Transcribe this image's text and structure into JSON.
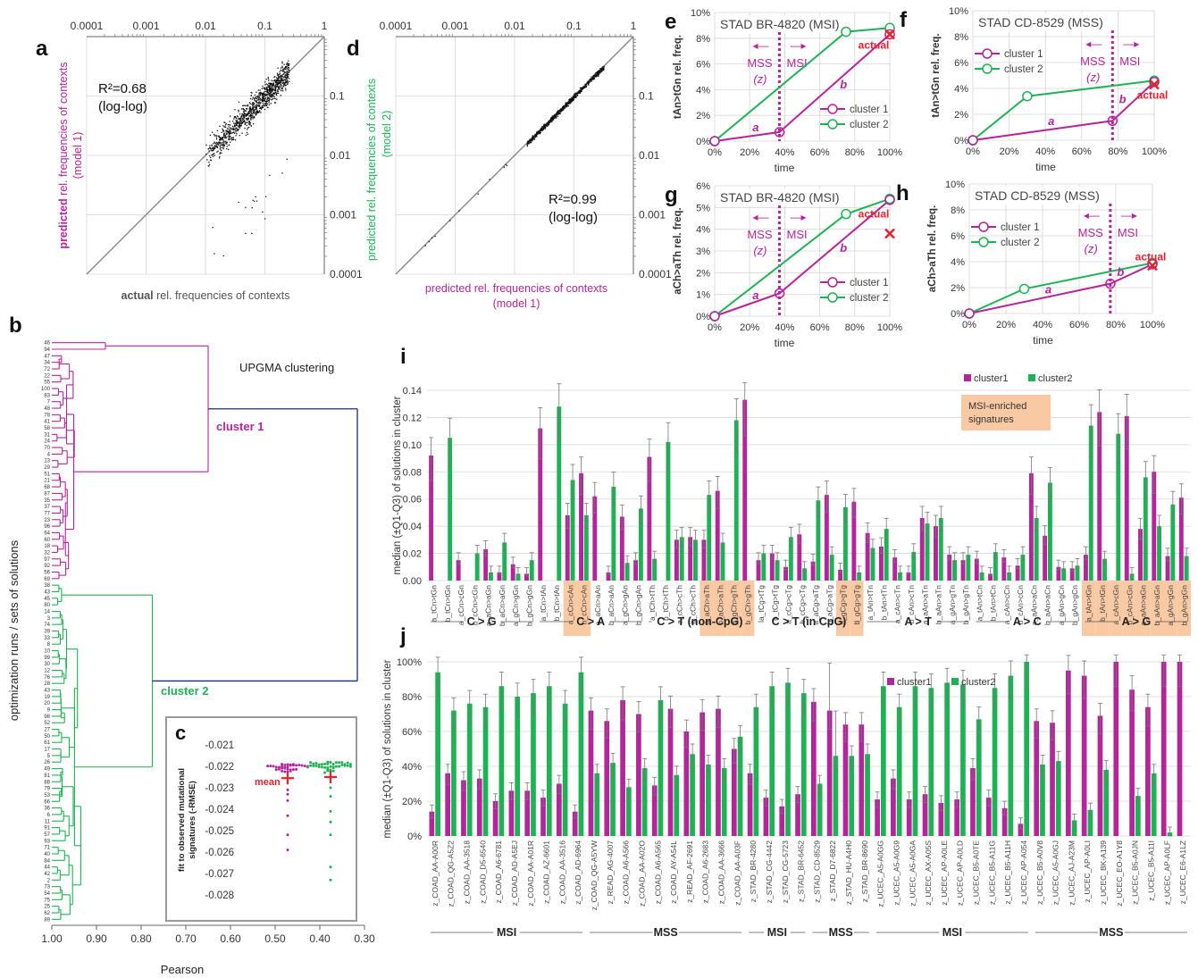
{
  "colors": {
    "magenta": "#b4249b",
    "green": "#1db253",
    "red": "#e8202c",
    "navy": "#1a2c7c",
    "salmon": "#f9c9a4",
    "grid": "#d6d6d6",
    "axis": "#666666",
    "text": "#333333"
  },
  "panels": {
    "a": {
      "letter": "a",
      "xticks": [
        "0.0001",
        "0.001",
        "0.01",
        "0.1",
        "1"
      ],
      "yticks": [
        "1",
        "0.1",
        "0.01",
        "0.001",
        "0.0001"
      ],
      "r2": "R²=0.68",
      "r2_sub": "(log-log)",
      "xlabel_bold": "actual",
      "xlabel_rest": " rel. frequencies of contexts",
      "ylabel_bold": "predicted",
      "ylabel_rest": " rel. frequencies of contexts",
      "ylabel_model": "(model 1)"
    },
    "d": {
      "letter": "d",
      "xticks": [
        "0.0001",
        "0.001",
        "0.01",
        "0.1",
        "1"
      ],
      "yticks": [
        "1",
        "0.1",
        "0.01",
        "0.001",
        "0.0001"
      ],
      "r2": "R²=0.99",
      "r2_sub": "(log-log)",
      "xlabel": "predicted rel. frequencies of contexts",
      "xlabel_model": "(model 1)",
      "ylabel": "predicted rel. frequencies of contexts",
      "ylabel_model": "(model 2)"
    },
    "b": {
      "letter": "b",
      "title": "UPGMA clustering",
      "cluster1": "cluster 1",
      "cluster2": "cluster 2",
      "xticks": [
        "1.00",
        "0.90",
        "0.80",
        "0.70",
        "0.60",
        "0.50",
        "0.40",
        "0.30"
      ],
      "xlabel": "Pearson",
      "ylabel": "optimization runs / sets of solutions",
      "leaf_labels": [
        "46",
        "94",
        "47",
        "34",
        "72",
        "22",
        "55",
        "100",
        "83",
        "7",
        "48",
        "78",
        "41",
        "58",
        "31",
        "24",
        "70",
        "4",
        "13",
        "29",
        "51",
        "21",
        "68",
        "87",
        "35",
        "37",
        "77",
        "23",
        "96",
        "64",
        "60",
        "18",
        "32",
        "97",
        "92",
        "56",
        "69",
        "38",
        "43",
        "45",
        "80",
        "14",
        "3",
        "74",
        "39",
        "33",
        "8",
        "10",
        "99",
        "30",
        "12",
        "76",
        "28",
        "43",
        "19",
        "20",
        "9",
        "98",
        "52",
        "27",
        "50",
        "61",
        "17",
        "5",
        "26",
        "49",
        "81",
        "88",
        "79",
        "53",
        "66",
        "36",
        "6",
        "11",
        "91",
        "57",
        "93",
        "71",
        "40",
        "84",
        "44",
        "42",
        "2",
        "73",
        "54",
        "75",
        "25",
        "62",
        "89"
      ]
    },
    "c": {
      "letter": "c",
      "ylabel1": "fit to observed mutational",
      "ylabel2": "signatures (-RMSE)",
      "yticks": [
        "-0.021",
        "-0.022",
        "-0.023",
        "-0.024",
        "-0.025",
        "-0.026",
        "-0.027",
        "-0.028"
      ],
      "mean": "mean"
    },
    "efgh": [
      {
        "letter": "e",
        "title": "STAD BR-4820 (MSI)",
        "ylabel": "tAn>tGn rel. freq.",
        "yticks": [
          "0%",
          "2%",
          "4%",
          "6%",
          "8%",
          "10%"
        ],
        "ymax": 10,
        "c1": [
          [
            0,
            0
          ],
          [
            37,
            0.7
          ],
          [
            100,
            8.3
          ]
        ],
        "c2": [
          [
            0,
            0
          ],
          [
            75,
            8.5
          ],
          [
            100,
            8.8
          ]
        ],
        "actual": [
          100,
          8.3
        ],
        "z": 37,
        "zlabel": "(z)"
      },
      {
        "letter": "f",
        "title": "STAD CD-8529 (MSS)",
        "ylabel": "tAn>tGn rel. freq.",
        "yticks": [
          "0%",
          "2%",
          "4%",
          "6%",
          "8%",
          "10%"
        ],
        "ymax": 10,
        "c1": [
          [
            0,
            0
          ],
          [
            77,
            1.5
          ],
          [
            100,
            4.5
          ]
        ],
        "c2": [
          [
            0,
            0
          ],
          [
            30,
            3.4
          ],
          [
            100,
            4.6
          ]
        ],
        "actual": [
          100,
          4.3
        ],
        "z": 77,
        "zlabel": "(z)"
      },
      {
        "letter": "g",
        "title": "STAD BR-4820 (MSI)",
        "ylabel": "aCh>aTh rel. freq.",
        "yticks": [
          "0%",
          "1%",
          "2%",
          "3%",
          "4%",
          "5%",
          "6%"
        ],
        "ymax": 6,
        "c1": [
          [
            0,
            0
          ],
          [
            37,
            1.05
          ],
          [
            100,
            5.35
          ]
        ],
        "c2": [
          [
            0,
            0
          ],
          [
            75,
            4.7
          ],
          [
            100,
            5.4
          ]
        ],
        "actual": [
          100,
          3.8
        ],
        "z": 37,
        "zlabel": "(z)"
      },
      {
        "letter": "h",
        "title": "STAD CD-8529 (MSS)",
        "ylabel": "aCh>aTh rel. freq.",
        "yticks": [
          "0%",
          "2%",
          "4%",
          "6%",
          "8%",
          "10%"
        ],
        "ymax": 10,
        "c1": [
          [
            0,
            0
          ],
          [
            77,
            2.3
          ],
          [
            100,
            3.8
          ]
        ],
        "c2": [
          [
            0,
            0
          ],
          [
            30,
            1.9
          ],
          [
            100,
            3.9
          ]
        ],
        "actual": [
          100,
          3.7
        ],
        "z": 77,
        "zlabel": "(z)"
      }
    ],
    "efgh_common": {
      "xticks": [
        "0%",
        "20%",
        "40%",
        "60%",
        "80%",
        "100%"
      ],
      "xlabel": "time",
      "mss": "MSS",
      "msi": "MSI",
      "actual": "actual",
      "seg_a": "a",
      "seg_b": "b",
      "legend1": "cluster 1",
      "legend2": "cluster 2"
    }
  },
  "chart_data": [
    {
      "type": "bar",
      "id": "i",
      "ylabel": "median (±Q1-Q3) of solutions in cluster",
      "yticks": [
        "0.00",
        "0.02",
        "0.04",
        "0.06",
        "0.08",
        "0.10",
        "0.12",
        "0.14"
      ],
      "ylim": [
        0,
        0.14
      ],
      "legend": [
        "cluster1",
        "cluster2"
      ],
      "note": "MSI-enriched signatures",
      "categories": [
        "a_tCn>tGn",
        "b_tCn>tGn",
        "a_cCn>cGn",
        "b_cCn>cGn",
        "a_aCn>aGn",
        "b_aCn>aGn",
        "a_gCn>gGn",
        "b_gCn>gGn",
        "a_tCn>tAn",
        "b_tCn>tAn",
        "a_cCn>cAn",
        "b_cCn>cAn",
        "a_aCn>aAn",
        "b_aCn>aAn",
        "a_gCn>gAn",
        "b_gCn>gAn",
        "a_tCh>tTh",
        "b_tCh>tTh",
        "a_cCh>cTh",
        "b_cCh>cTh",
        "a_aCh>aTh",
        "b_aCh>aTh",
        "a_gCh>gTh",
        "b_gCh>gTh",
        "a_tCg>tTg",
        "b_tCg>tTg",
        "a_cCg>cTg",
        "b_cCg>cTg",
        "a_aCg>aTg",
        "b_aCg>aTg",
        "a_gCg>gTg",
        "b_gCg>gTg",
        "a_tAn>tTn",
        "b_tAn>tTn",
        "a_cAn>cTn",
        "b_cAn>cTn",
        "a_aAn>aTn",
        "b_aAn>aTn",
        "a_gAn>gTn",
        "b_gAn>gTn",
        "a_tAn>tCn",
        "b_tAn>tCn",
        "a_cAn>cCn",
        "b_cAn>cCn",
        "a_aAn>aCn",
        "b_aAn>aCn",
        "a_gAn>gCn",
        "b_gAn>gCn",
        "a_tAn>tGn",
        "b_tAn>tGn",
        "a_cAn>cGn",
        "b_cAn>cGn",
        "a_aAn>aGn",
        "b_aAn>aGn",
        "a_gAn>gGn",
        "b_gAn>gGn"
      ],
      "highlighted": [
        10,
        11,
        20,
        21,
        22,
        23,
        30,
        31,
        48,
        49,
        50,
        51,
        52,
        53,
        54,
        55
      ],
      "series": [
        {
          "name": "cluster1",
          "values": [
            0.092,
            0.0,
            0.015,
            0.0,
            0.023,
            0.006,
            0.012,
            0.005,
            0.112,
            0.0,
            0.048,
            0.079,
            0.062,
            0.006,
            0.047,
            0.015,
            0.091,
            0.0,
            0.03,
            0.032,
            0.03,
            0.066,
            0.0,
            0.133,
            0.015,
            0.02,
            0.01,
            0.034,
            0.014,
            0.063,
            0.008,
            0.058,
            0.035,
            0.025,
            0.017,
            0.006,
            0.046,
            0.04,
            0.019,
            0.015,
            0.016,
            0.005,
            0.017,
            0.011,
            0.079,
            0.033,
            0.01,
            0.009,
            0.019,
            0.124,
            0.0,
            0.121,
            0.038,
            0.08,
            0.018,
            0.061
          ]
        },
        {
          "name": "cluster2",
          "values": [
            0.0,
            0.105,
            0.0,
            0.02,
            0.006,
            0.028,
            0.005,
            0.015,
            0.0,
            0.128,
            0.074,
            0.048,
            0.0,
            0.069,
            0.013,
            0.053,
            0.016,
            0.102,
            0.032,
            0.03,
            0.063,
            0.028,
            0.118,
            0.0,
            0.02,
            0.015,
            0.032,
            0.009,
            0.059,
            0.019,
            0.054,
            0.006,
            0.024,
            0.038,
            0.006,
            0.021,
            0.042,
            0.046,
            0.015,
            0.019,
            0.006,
            0.021,
            0.006,
            0.019,
            0.046,
            0.072,
            0.009,
            0.011,
            0.114,
            0.016,
            0.108,
            0.005,
            0.076,
            0.04,
            0.056,
            0.018
          ]
        }
      ],
      "groups": [
        "C > G",
        "C > A",
        "C > T (non-CpG)",
        "C > T (in CpG)",
        "A > T",
        "A > C",
        "A > G"
      ]
    },
    {
      "type": "bar",
      "id": "j",
      "ylabel": "median (±Q1-Q3) of solutions in cluster",
      "yticks": [
        "0%",
        "20%",
        "40%",
        "60%",
        "80%",
        "100%"
      ],
      "ylim": [
        0,
        100
      ],
      "legend": [
        "cluster1",
        "cluster2"
      ],
      "categories": [
        "z_COAD_AA-A00R",
        "z_COAD_QG-A5Z2",
        "z_COAD_AA-3518",
        "z_COAD_D5-6540",
        "z_COAD_A6-6781",
        "z_COAD_AD-A5EJ",
        "z_COAD_AA-A01R",
        "z_COAD_AZ-6601",
        "z_COAD_AA-3516",
        "z_COAD_AD-6964",
        "z_COAD_QG-A5YW",
        "z_READ_AG-4007",
        "z_COAD_A6-A566",
        "z_COAD_AA-A02O",
        "z_COAD_A6-A565",
        "z_COAD_AY-A54L",
        "z_READ_AF-2691",
        "z_COAD_A6-2683",
        "z_COAD_AA-3666",
        "z_COAD_AA-A03F",
        "z_STAD_BR-4280",
        "z_STAD_CG-4442",
        "z_STAD_CG-5723",
        "z_STAD_BR-6452",
        "z_STAD_CD-8529",
        "z_STAD_D7-6822",
        "z_STAD_HU-A4H0",
        "z_STAD_BR-8690",
        "z_UCEC_A5-A0GG",
        "z_UCEC_A5-A0G9",
        "z_UCEC_A5-A0GA",
        "z_UCEC_AX-A05S",
        "z_UCEC_AP-A0LE",
        "z_UCEC_AP-A0LD",
        "z_UCEC_B5-A0TE",
        "z_UCEC_B5-A11G",
        "z_UCEC_B5-A11H",
        "z_UCEC_AP-A054",
        "z_UCEC_B5-A0V8",
        "z_UCEC_A5-A0GJ",
        "z_UCEC_AJ-A23M",
        "z_UCEC_AP-A0LI",
        "z_UCEC_BK-A139",
        "z_UCEC_EO-A1Y8",
        "z_UCEC_B5-A0JN",
        "z_UCEC_B5-A11I",
        "z_UCEC_AP-A0LF",
        "z_UCEC_E6-A1LZ"
      ],
      "series": [
        {
          "name": "cluster1",
          "values": [
            14,
            36,
            32,
            33,
            20,
            26,
            26,
            22,
            30,
            14,
            72,
            66,
            78,
            70,
            29,
            73,
            60,
            71,
            73,
            50,
            36,
            22,
            17,
            24,
            77,
            72,
            64,
            64,
            21,
            33,
            21,
            24,
            19,
            21,
            39,
            22,
            16,
            7,
            66,
            65,
            95,
            92,
            69,
            100,
            84,
            74,
            100,
            100
          ]
        },
        {
          "name": "cluster2",
          "values": [
            94,
            72,
            76,
            74,
            86,
            80,
            82,
            86,
            76,
            94,
            36,
            42,
            28,
            39,
            78,
            35,
            47,
            41,
            39,
            57,
            74,
            86,
            88,
            82,
            30,
            46,
            46,
            47,
            86,
            74,
            86,
            85,
            88,
            87,
            67,
            85,
            92,
            100,
            41,
            43,
            9,
            15,
            38,
            0,
            23,
            36,
            2,
            0
          ]
        }
      ],
      "groups": [
        "MSI",
        "MSS",
        "MSI",
        "MSS",
        "MSI",
        "MSS"
      ]
    }
  ]
}
